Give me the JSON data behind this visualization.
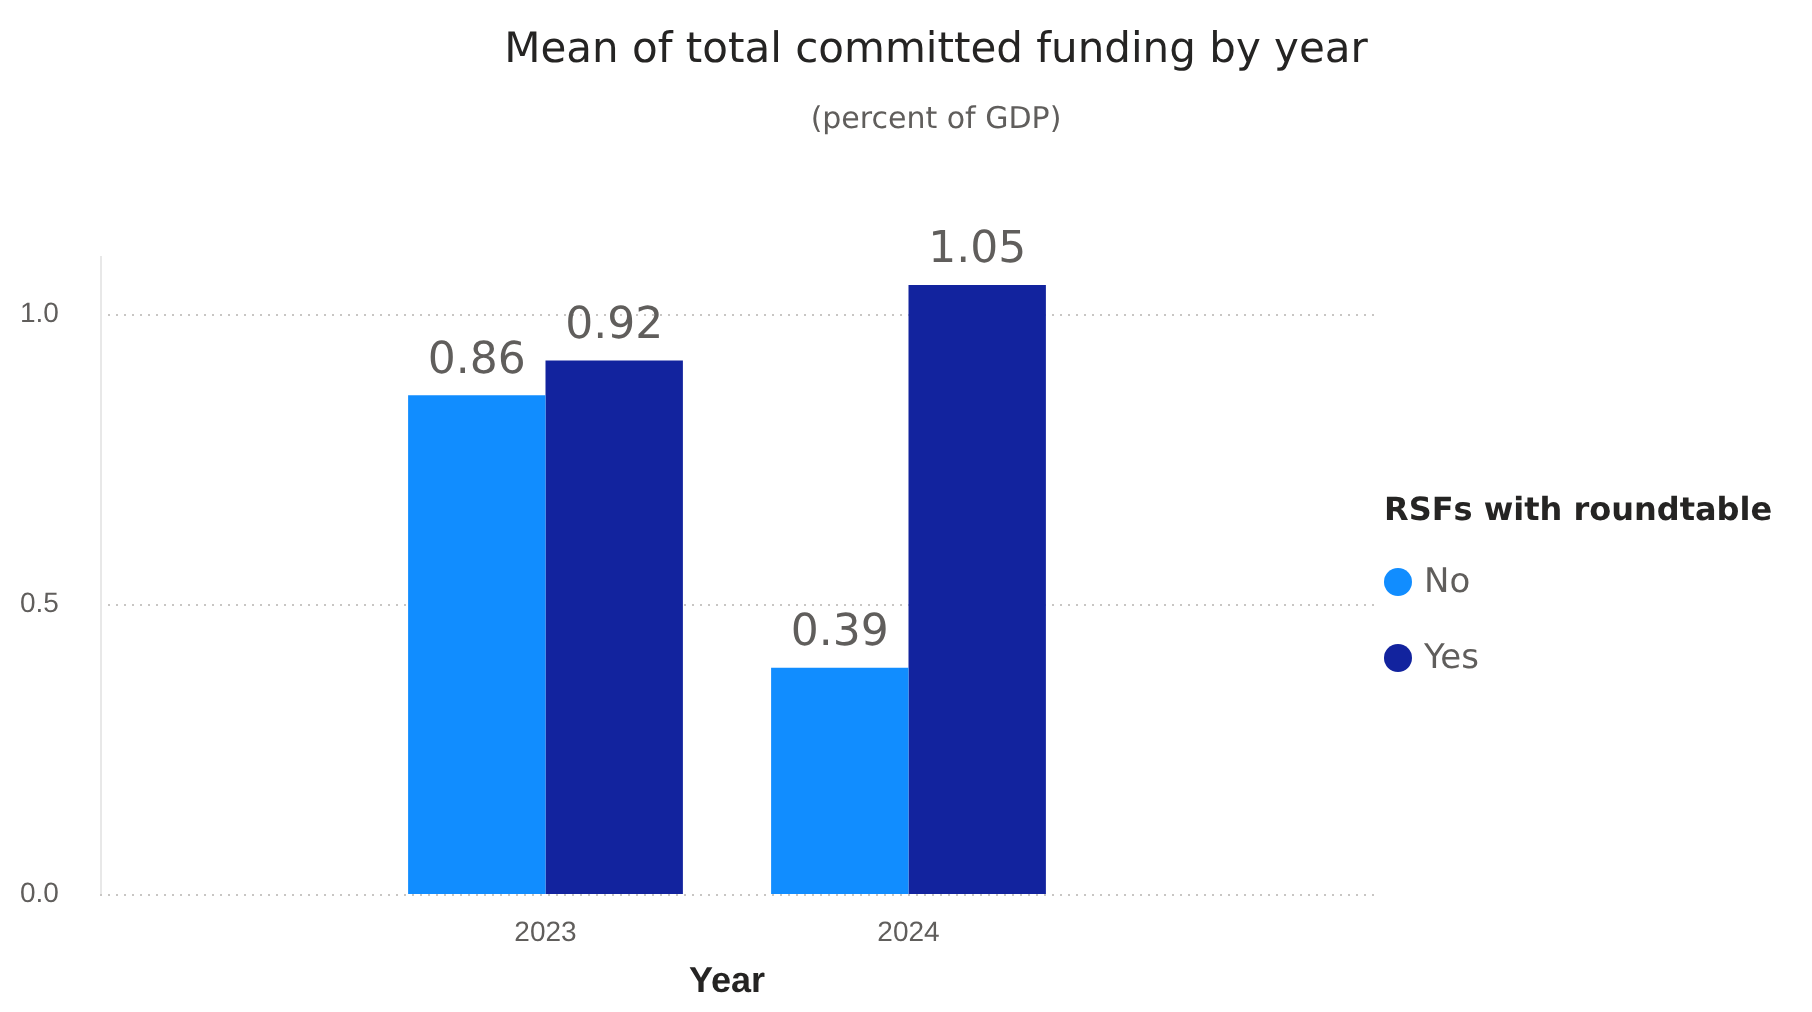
{
  "chart_data": {
    "type": "bar",
    "title": "Mean of total committed funding by year",
    "subtitle": "(percent of GDP)",
    "xlabel": "Year",
    "legend_title": "RSFs with roundtable",
    "categories": [
      "2023",
      "2024"
    ],
    "series": [
      {
        "name": "No",
        "color": "#118dff",
        "values": [
          0.86,
          0.39
        ]
      },
      {
        "name": "Yes",
        "color": "#12239e",
        "values": [
          0.92,
          1.05
        ]
      }
    ],
    "ylim": [
      0,
      1.1
    ],
    "yticks": [
      {
        "value": 0,
        "label": "0.0"
      },
      {
        "value": 0.5,
        "label": "0.5"
      },
      {
        "value": 1,
        "label": "1.0"
      }
    ],
    "grid": "y",
    "legend": "right",
    "data_labels": true
  }
}
